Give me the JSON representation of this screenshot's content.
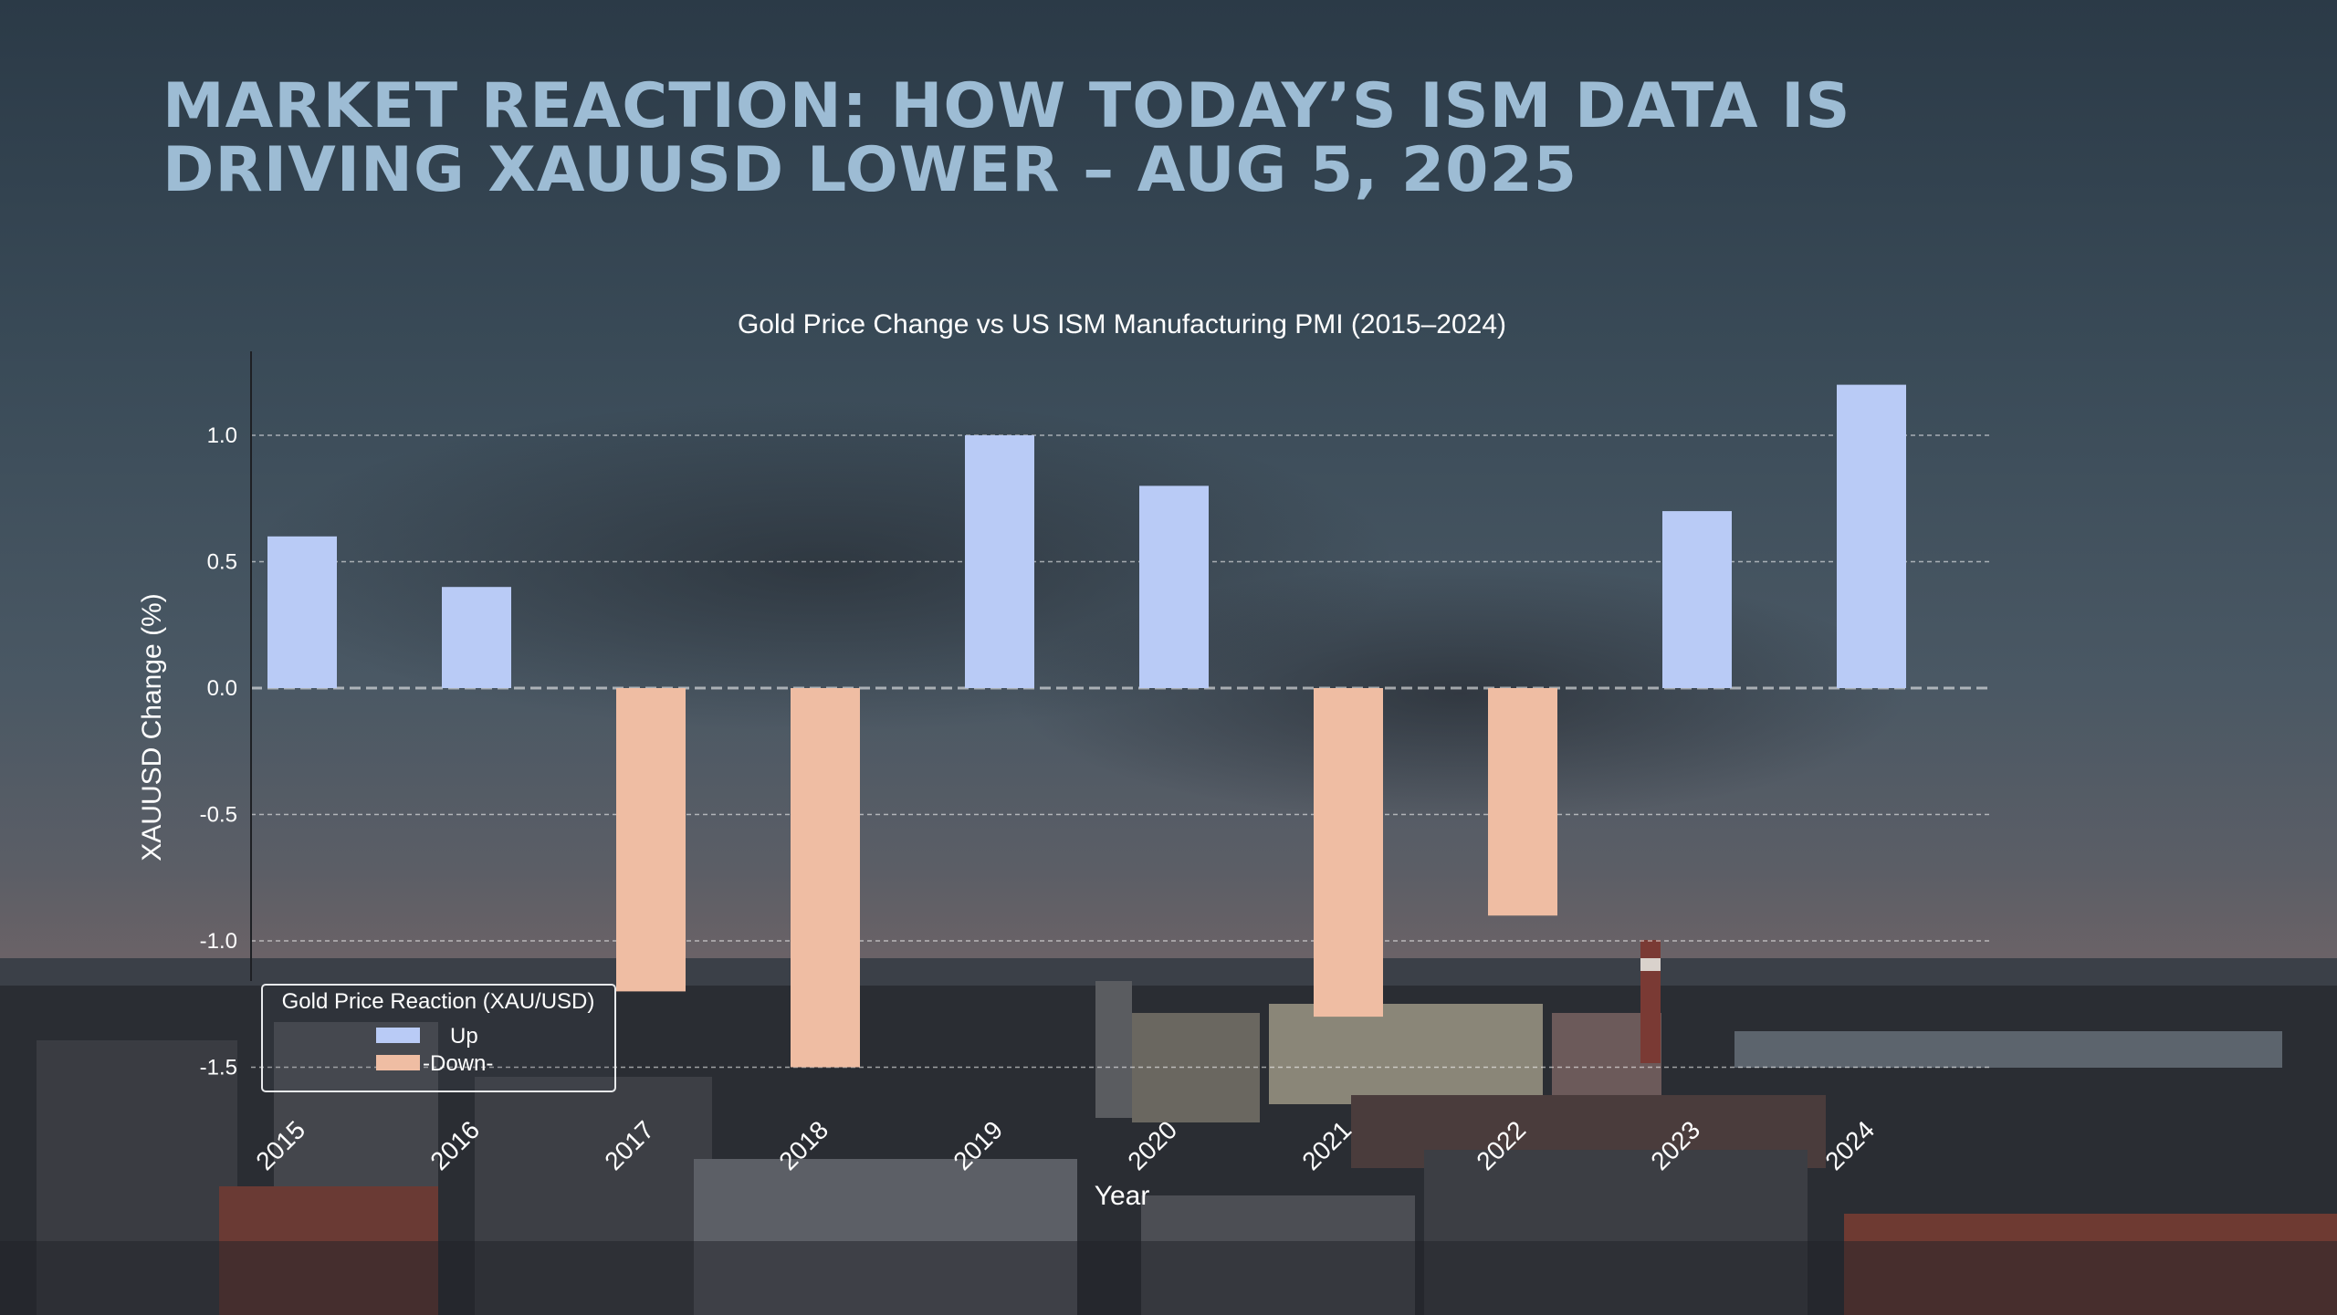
{
  "slide": {
    "headline": "MARKET REACTION: HOW TODAY’S ISM DATA IS DRIVING XAUUSD LOWER – AUG 5, 2025"
  },
  "chart_data": {
    "type": "bar",
    "title": "Gold Price Change vs US ISM Manufacturing PMI (2015–2024)",
    "xlabel": "Year",
    "ylabel": "XAUUSD Change (%)",
    "categories": [
      "2015",
      "2016",
      "2017",
      "2018",
      "2019",
      "2020",
      "2021",
      "2022",
      "2023",
      "2024"
    ],
    "values": [
      0.6,
      0.4,
      -1.2,
      -1.5,
      1.0,
      0.8,
      -1.3,
      -0.9,
      0.7,
      1.2
    ],
    "ylim": [
      -1.5,
      1.25
    ],
    "yticks": [
      "1.0",
      "0.5",
      "0.0",
      "-0.5",
      "-1.0",
      "-1.5"
    ],
    "ytick_values": [
      1.0,
      0.5,
      0.0,
      -0.5,
      -1.0,
      -1.5
    ],
    "grid": "horizontal dashed",
    "colors": {
      "up": "#b9cbf6",
      "down": "#efbda3"
    },
    "legend": {
      "title": "Gold Price Reaction (XAU/USD)",
      "placement": "bottom-left",
      "items": [
        {
          "label": "Up",
          "color": "#b9cbf6"
        },
        {
          "label": "-Down-",
          "color": "#efbda3"
        }
      ]
    }
  }
}
